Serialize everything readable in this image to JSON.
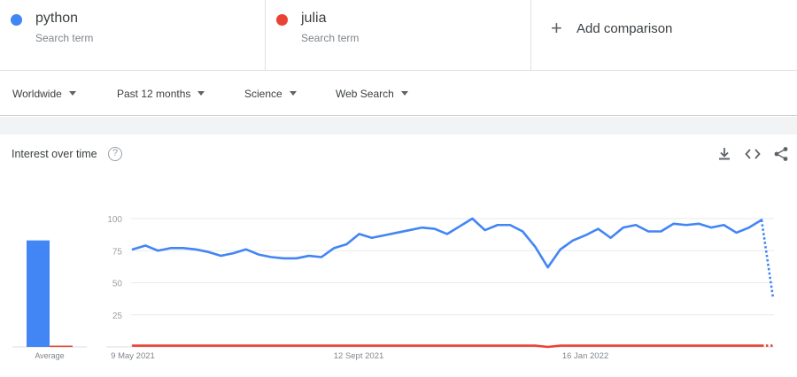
{
  "terms": [
    {
      "name": "python",
      "sub": "Search term",
      "color": "#4285f4"
    },
    {
      "name": "julia",
      "sub": "Search term",
      "color": "#ea4335"
    }
  ],
  "add_comparison": "Add comparison",
  "filters": {
    "region": "Worldwide",
    "time": "Past 12 months",
    "category": "Science",
    "source": "Web Search"
  },
  "card": {
    "title": "Interest over time",
    "help": "?"
  },
  "icons": [
    "download-icon",
    "embed-icon",
    "share-icon",
    "help-icon",
    "plus-icon"
  ],
  "chart_data": {
    "type": "line",
    "y_ticks": [
      100,
      75,
      50,
      25
    ],
    "x_ticks": [
      "9 May 2021",
      "12 Sept 2021",
      "16 Jan 2022"
    ],
    "ylim": [
      0,
      100
    ],
    "grid": true,
    "average_label": "Average",
    "averages": [
      {
        "name": "python",
        "value": 83
      },
      {
        "name": "julia",
        "value": 1
      }
    ],
    "series": [
      {
        "name": "python",
        "color": "#4285f4",
        "values": [
          76,
          79,
          75,
          77,
          77,
          76,
          74,
          71,
          73,
          76,
          72,
          70,
          69,
          69,
          71,
          70,
          77,
          80,
          88,
          85,
          87,
          89,
          91,
          93,
          92,
          88,
          94,
          100,
          91,
          95,
          95,
          90,
          78,
          62,
          76,
          83,
          87,
          92,
          85,
          93,
          95,
          90,
          90,
          96,
          95,
          96,
          93,
          95,
          89,
          93,
          99
        ],
        "partial_last": 38
      },
      {
        "name": "julia",
        "color": "#ea4335",
        "values": [
          1,
          1,
          1,
          1,
          1,
          1,
          1,
          1,
          1,
          1,
          1,
          1,
          1,
          1,
          1,
          1,
          1,
          1,
          1,
          1,
          1,
          1,
          1,
          1,
          1,
          1,
          1,
          1,
          1,
          1,
          1,
          1,
          1,
          0,
          1,
          1,
          1,
          1,
          1,
          1,
          1,
          1,
          1,
          1,
          1,
          1,
          1,
          1,
          1,
          1,
          1
        ],
        "partial_last": 1
      }
    ]
  }
}
